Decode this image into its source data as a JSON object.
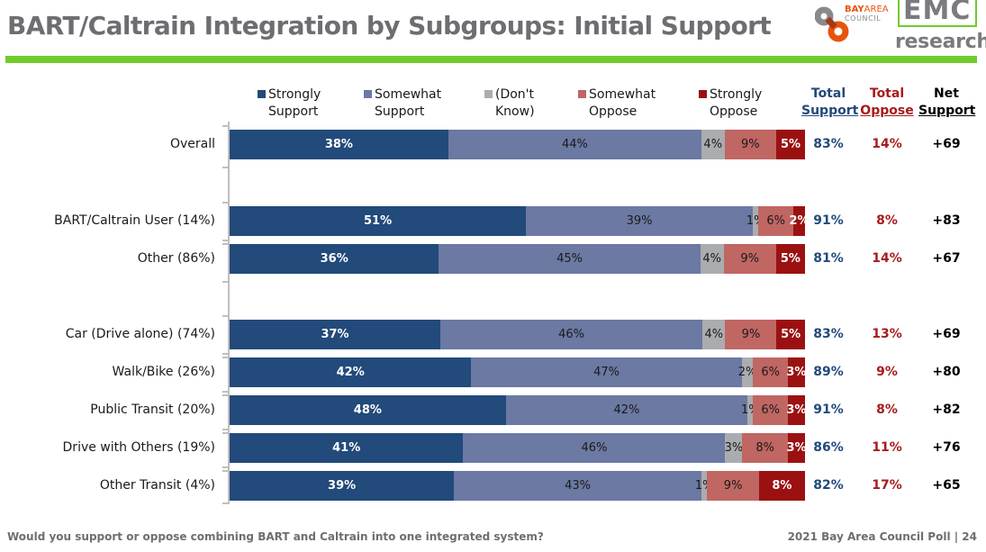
{
  "header": {
    "title": "BART/Caltrain Integration by Subgroups: Initial Support",
    "logo_bac": {
      "bay": "BAY",
      "area": "AREA",
      "council": "COUNCIL"
    },
    "logo_emc": {
      "emc": "EMC",
      "research": "research"
    }
  },
  "colors": {
    "strongly_support": "#224a7a",
    "somewhat_support": "#6b79a3",
    "dont_know": "#abacb0",
    "somewhat_oppose": "#c06663",
    "strongly_oppose": "#9b1111",
    "total_support": "#224a7a",
    "total_oppose": "#a81b1b",
    "net_support": "#000000",
    "accent_green": "#6fcc2a"
  },
  "columns": {
    "total_support": [
      "Total",
      "Support"
    ],
    "total_oppose": [
      "Total",
      "Oppose"
    ],
    "net_support": [
      "Net",
      "Support"
    ]
  },
  "chart_data": {
    "type": "bar",
    "orientation": "horizontal",
    "stacked": true,
    "title": "BART/Caltrain Integration by Subgroups: Initial Support",
    "xlabel": "",
    "ylabel": "",
    "xlim": [
      0,
      100
    ],
    "grid": false,
    "legend_position": "top",
    "legend": [
      [
        "Strongly",
        "Support"
      ],
      [
        "Somewhat",
        "Support"
      ],
      [
        "(Don't",
        "Know)"
      ],
      [
        "Somewhat",
        "Oppose"
      ],
      [
        "Strongly",
        "Oppose"
      ]
    ],
    "series_names": [
      "Strongly Support",
      "Somewhat Support",
      "(Don't Know)",
      "Somewhat Oppose",
      "Strongly Oppose"
    ],
    "categories": [
      "Overall",
      "BART/Caltrain User (14%)",
      "Other (86%)",
      "Car (Drive alone) (74%)",
      "Walk/Bike (26%)",
      "Public Transit (20%)",
      "Drive with Others (19%)",
      "Other Transit (4%)"
    ],
    "rows": [
      {
        "label": "Overall",
        "values": [
          38,
          44,
          4,
          9,
          5
        ],
        "labels": [
          "38%",
          "44%",
          "4%",
          "9%",
          "5%"
        ],
        "total_support": "83%",
        "total_oppose": "14%",
        "net_support": "+69"
      },
      {
        "label": "BART/Caltrain User (14%)",
        "values": [
          51,
          39,
          1,
          6,
          2
        ],
        "labels": [
          "51%",
          "39%",
          "1%",
          "6%",
          "2%"
        ],
        "total_support": "91%",
        "total_oppose": "8%",
        "net_support": "+83"
      },
      {
        "label": "Other (86%)",
        "values": [
          36,
          45,
          4,
          9,
          5
        ],
        "labels": [
          "36%",
          "45%",
          "4%",
          "9%",
          "5%"
        ],
        "total_support": "81%",
        "total_oppose": "14%",
        "net_support": "+67"
      },
      {
        "label": "Car (Drive alone) (74%)",
        "values": [
          37,
          46,
          4,
          9,
          5
        ],
        "labels": [
          "37%",
          "46%",
          "4%",
          "9%",
          "5%"
        ],
        "total_support": "83%",
        "total_oppose": "13%",
        "net_support": "+69"
      },
      {
        "label": "Walk/Bike (26%)",
        "values": [
          42,
          47,
          2,
          6,
          3
        ],
        "labels": [
          "42%",
          "47%",
          "2%",
          "6%",
          "3%"
        ],
        "total_support": "89%",
        "total_oppose": "9%",
        "net_support": "+80"
      },
      {
        "label": "Public Transit (20%)",
        "values": [
          48,
          42,
          1,
          6,
          3
        ],
        "labels": [
          "48%",
          "42%",
          "1%",
          "6%",
          "3%"
        ],
        "total_support": "91%",
        "total_oppose": "8%",
        "net_support": "+82"
      },
      {
        "label": "Drive with Others (19%)",
        "values": [
          41,
          46,
          3,
          8,
          3
        ],
        "labels": [
          "41%",
          "46%",
          "3%",
          "8%",
          "3%"
        ],
        "total_support": "86%",
        "total_oppose": "11%",
        "net_support": "+76"
      },
      {
        "label": "Other Transit (4%)",
        "values": [
          39,
          43,
          1,
          9,
          8
        ],
        "labels": [
          "39%",
          "43%",
          "1%",
          "9%",
          "8%"
        ],
        "total_support": "82%",
        "total_oppose": "17%",
        "net_support": "+65"
      }
    ]
  },
  "footer": {
    "question": "Would you support or oppose combining BART and Caltrain into one integrated system?",
    "source": "2021 Bay Area Council Poll | 24"
  }
}
